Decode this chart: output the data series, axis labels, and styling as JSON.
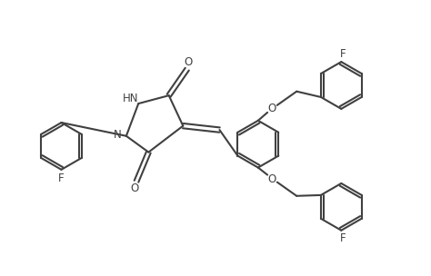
{
  "bg_color": "#ffffff",
  "line_color": "#404040",
  "line_width": 1.5,
  "figsize": [
    4.74,
    3.04
  ],
  "dpi": 100,
  "font_size": 8.5,
  "font_color": "#404040",
  "xlim": [
    0,
    10.5
  ],
  "ylim": [
    0,
    6.5
  ]
}
